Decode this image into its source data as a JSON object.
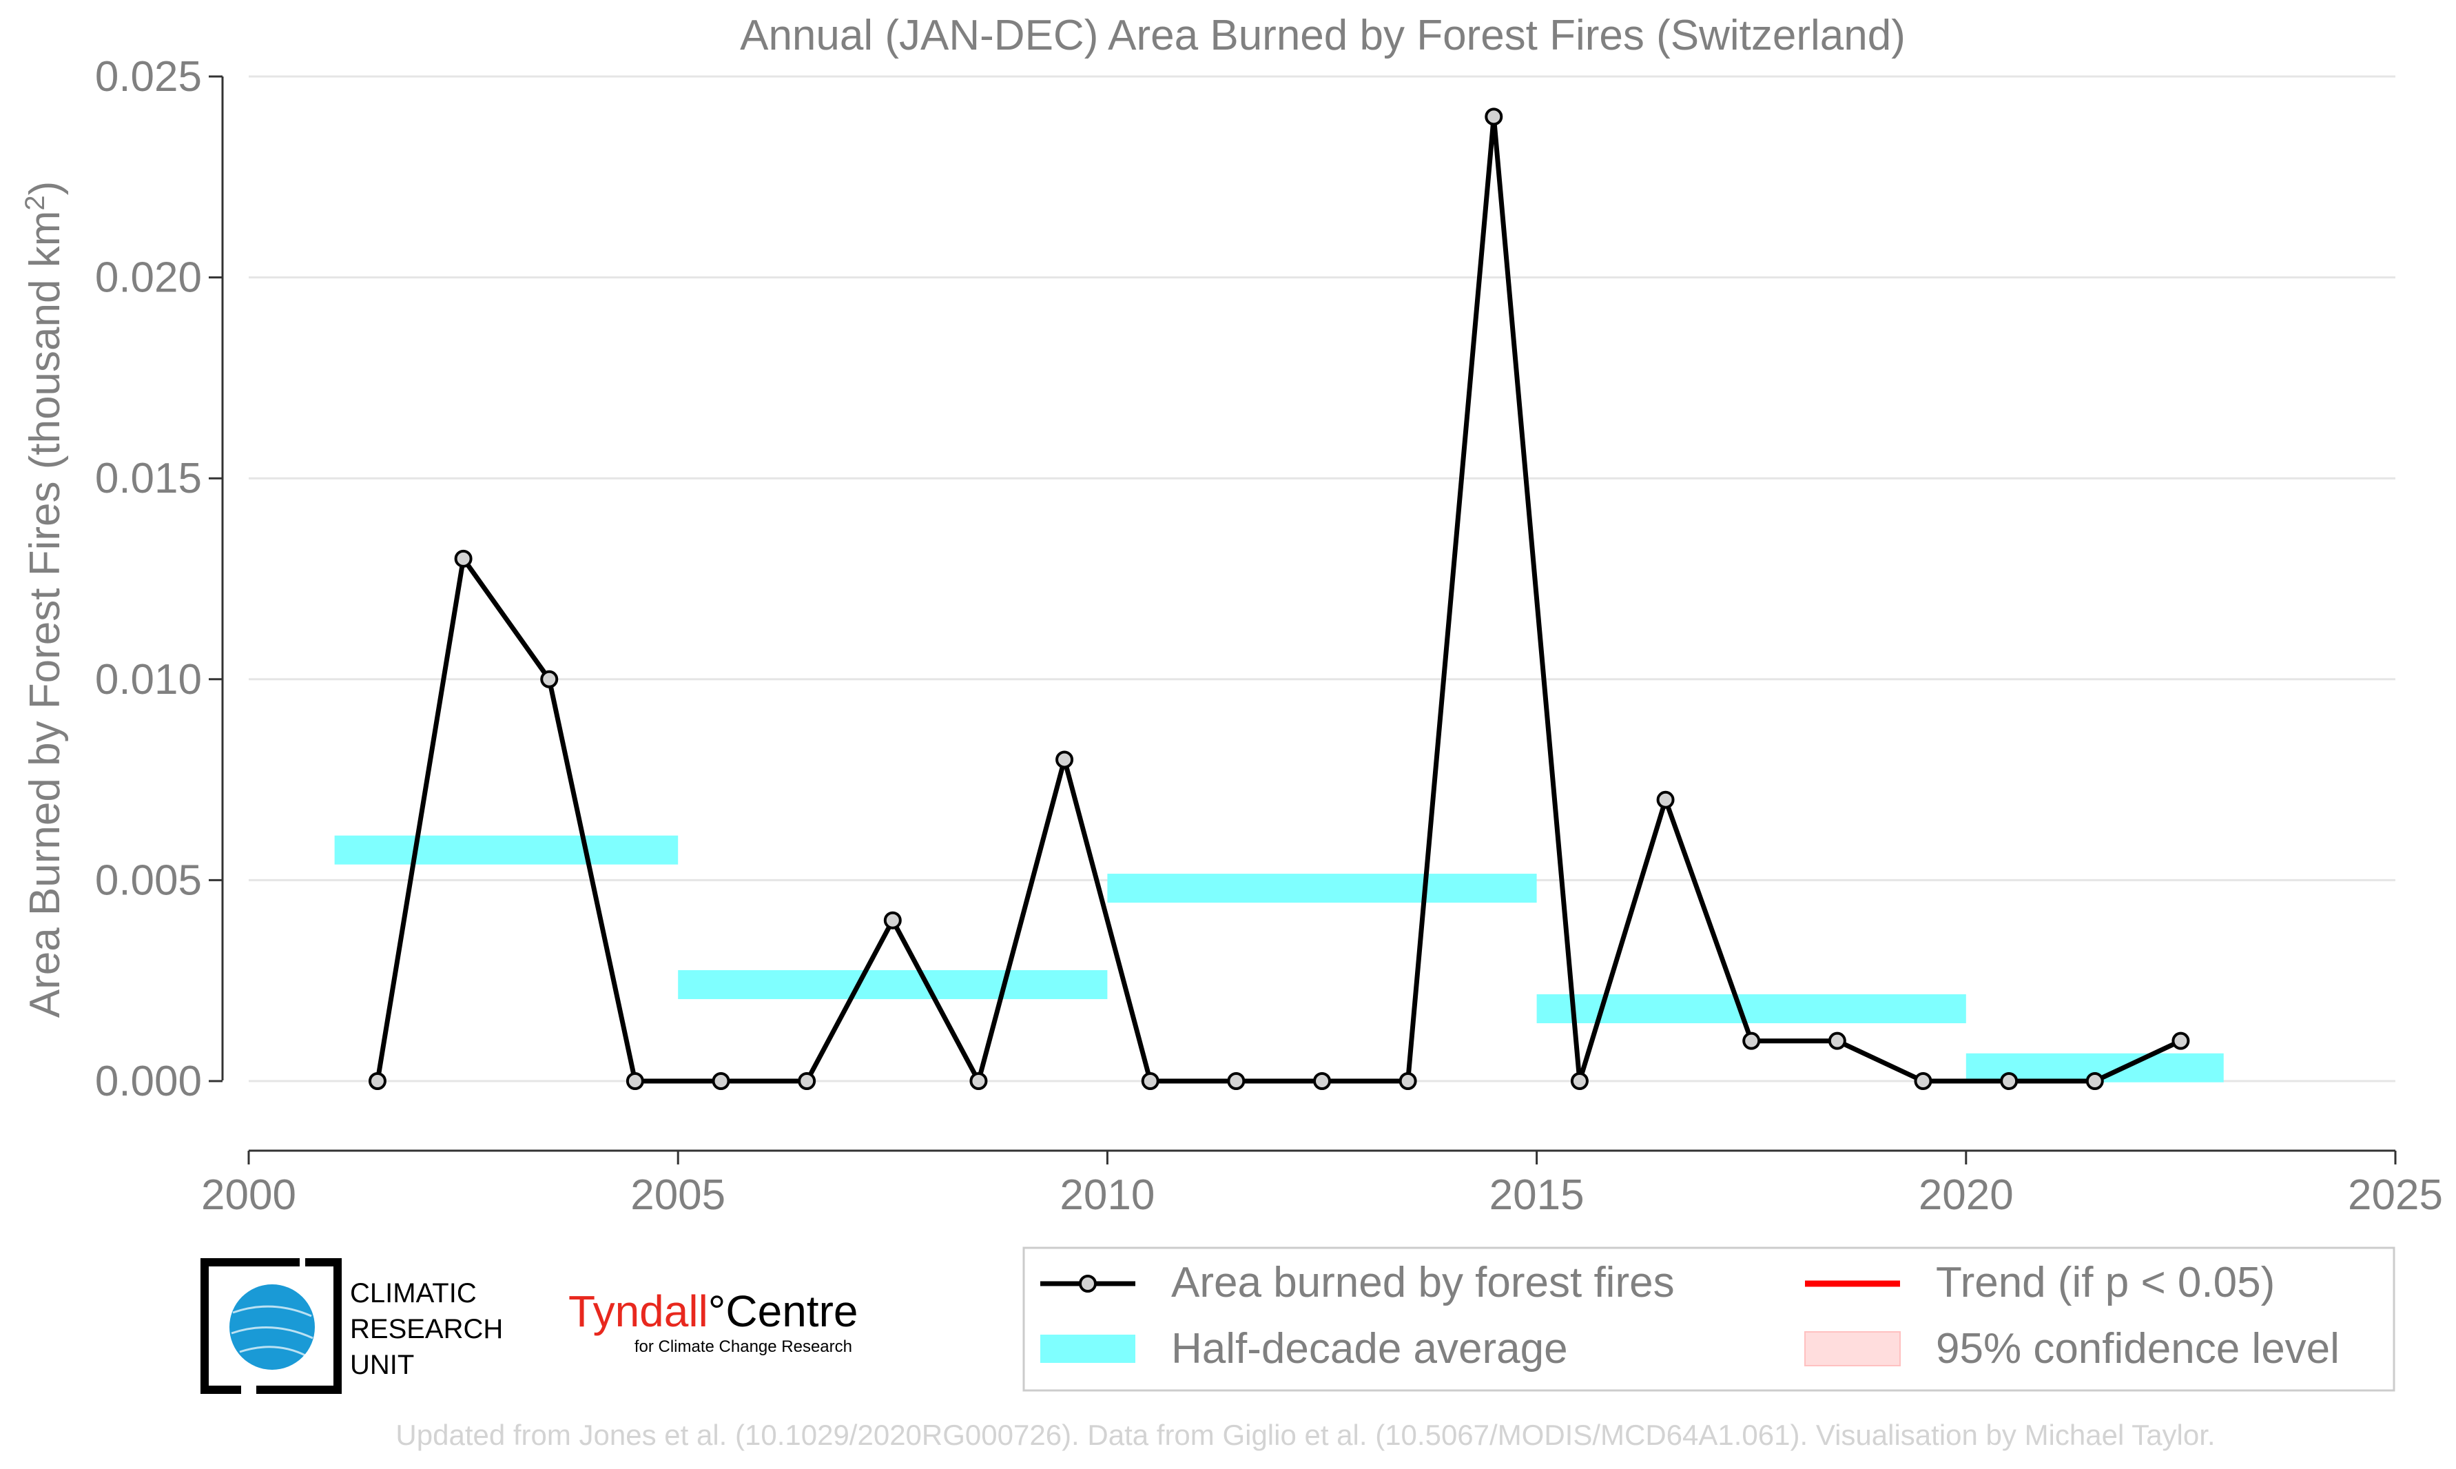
{
  "chart_data": {
    "type": "line",
    "title": "Annual (JAN-DEC) Area Burned by Forest Fires (Switzerland)",
    "ylabel": "Area Burned by Forest Fires (thousand km",
    "ylabel_sup": "2",
    "ylabel_close": ")",
    "xlabel": "",
    "xlim": [
      2000,
      2025
    ],
    "ylim": [
      -0.0018,
      0.025
    ],
    "xticks": [
      2000,
      2005,
      2010,
      2015,
      2020,
      2025
    ],
    "xtick_labels": [
      "2000",
      "2005",
      "2010",
      "2015",
      "2020",
      "2025"
    ],
    "yticks": [
      0.0,
      0.005,
      0.01,
      0.015,
      0.02,
      0.025
    ],
    "ytick_labels": [
      "0.000",
      "0.005",
      "0.010",
      "0.015",
      "0.020",
      "0.025"
    ],
    "grid": "horizontal",
    "series": [
      {
        "name": "Area burned by forest fires",
        "color": "#000000",
        "marker_fill": "#d3d3d3",
        "x": [
          2001.5,
          2002.5,
          2003.5,
          2004.5,
          2005.5,
          2006.5,
          2007.5,
          2008.5,
          2009.5,
          2010.5,
          2011.5,
          2012.5,
          2013.5,
          2014.5,
          2015.5,
          2016.5,
          2017.5,
          2018.5,
          2019.5,
          2020.5,
          2021.5,
          2022.5
        ],
        "values": [
          0.0,
          0.013,
          0.01,
          0.0,
          0.0,
          0.0,
          0.004,
          0.0,
          0.008,
          0.0,
          0.0,
          0.0,
          0.0,
          0.024,
          0.0,
          0.007,
          0.001,
          0.001,
          0.0,
          0.0,
          0.0,
          0.001
        ]
      }
    ],
    "half_decade_averages": {
      "name": "Half-decade average",
      "color": "#7fffff",
      "segments": [
        {
          "x_start": 2001,
          "x_end": 2005,
          "value": 0.00575
        },
        {
          "x_start": 2005,
          "x_end": 2010,
          "value": 0.0024
        },
        {
          "x_start": 2010,
          "x_end": 2015,
          "value": 0.0048
        },
        {
          "x_start": 2015,
          "x_end": 2020,
          "value": 0.0018
        },
        {
          "x_start": 2020,
          "x_end": 2023,
          "value": 0.00033
        }
      ]
    },
    "legend": {
      "placement": "bottom-right",
      "entries": [
        {
          "label": "Area burned by forest fires",
          "kind": "line-marker",
          "color": "#000000"
        },
        {
          "label": "Trend (if p < 0.05)",
          "kind": "line",
          "color": "#ff0000"
        },
        {
          "label": "Half-decade average",
          "kind": "band",
          "color": "#7fffff"
        },
        {
          "label": "95% confidence level",
          "kind": "band",
          "color": "#ffdddd"
        }
      ]
    },
    "annotation": "Updated from Jones et al. (10.1029/2020RG000726). Data from Giglio et al. (10.5067/MODIS/MCD64A1.061). Visualisation by Michael Taylor."
  },
  "logos": {
    "cru_line1": "CLIMATIC",
    "cru_line2": "RESEARCH",
    "cru_line3": "UNIT",
    "tyndall_main": "Tyndall",
    "tyndall_degree": "°",
    "tyndall_centre": "Centre",
    "tyndall_sub": "for Climate Change Research",
    "tyndall_color": "#e8281e",
    "cru_globe_color": "#1a9ad6"
  }
}
